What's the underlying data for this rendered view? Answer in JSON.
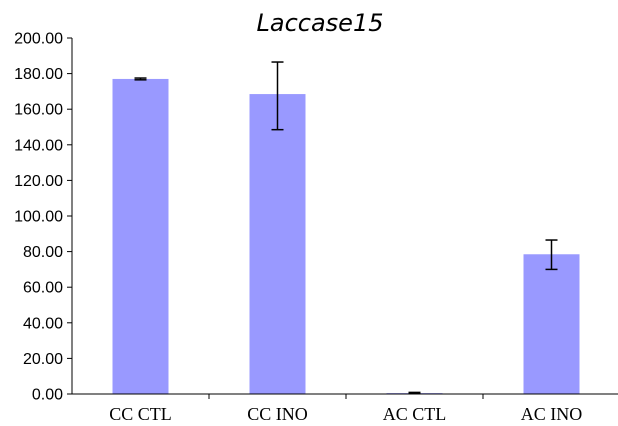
{
  "chart_data": {
    "type": "bar",
    "title": "Laccase15",
    "xlabel": "",
    "ylabel": "",
    "categories": [
      "CC CTL",
      "CC INO",
      "AC CTL",
      "AC INO"
    ],
    "values": [
      177.0,
      168.5,
      0.5,
      78.5
    ],
    "error_low": [
      176.5,
      148.5,
      0.2,
      70.0
    ],
    "error_high": [
      177.5,
      186.5,
      0.9,
      86.5
    ],
    "ylim": [
      0,
      200
    ],
    "yticks": [
      "0.00",
      "20.00",
      "40.00",
      "60.00",
      "80.00",
      "100.00",
      "120.00",
      "140.00",
      "160.00",
      "180.00",
      "200.00"
    ],
    "grid": false,
    "legend": "none",
    "bar_color": "#9999FF",
    "axis_color": "#000000"
  }
}
